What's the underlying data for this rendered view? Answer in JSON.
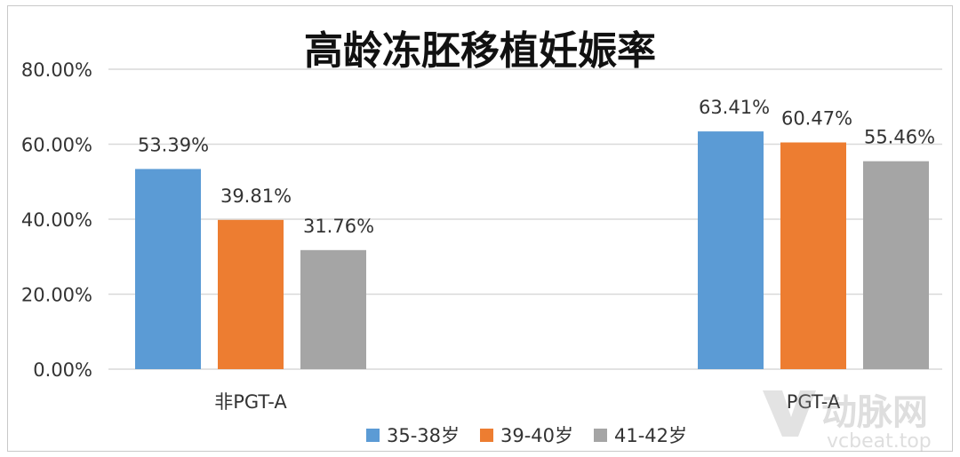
{
  "chart_data": {
    "type": "bar",
    "title": "高龄冻胚移植妊娠率",
    "categories": [
      "非PGT-A",
      "PGT-A"
    ],
    "series": [
      {
        "name": "35-38岁",
        "values": [
          53.39,
          63.41
        ],
        "labels": [
          "53.39%",
          "63.41%"
        ],
        "color": "#5b9bd5"
      },
      {
        "name": "39-40岁",
        "values": [
          39.81,
          60.47
        ],
        "labels": [
          "39.81%",
          "60.47%"
        ],
        "color": "#ed7d31"
      },
      {
        "name": "41-42岁",
        "values": [
          31.76,
          55.46
        ],
        "labels": [
          "31.76%",
          "55.46%"
        ],
        "color": "#a5a5a5"
      }
    ],
    "ylim": [
      0,
      80
    ],
    "yticks": [
      0,
      20,
      40,
      60,
      80
    ],
    "ytick_labels": [
      "0.00%",
      "20.00%",
      "40.00%",
      "60.00%",
      "80.00%"
    ],
    "grid": true,
    "legend_position": "bottom-center"
  },
  "watermark": {
    "brand": "动脉网",
    "site": "vcbeat.top"
  }
}
